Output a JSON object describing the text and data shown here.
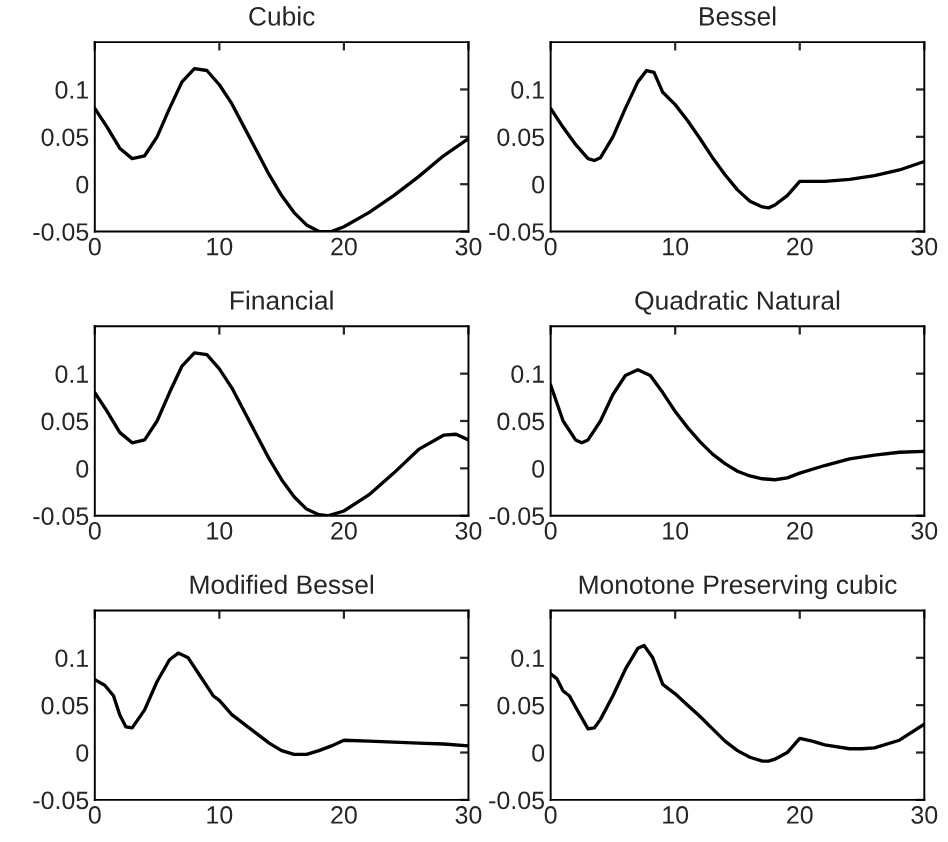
{
  "chart_data": [
    {
      "type": "line",
      "title": "Cubic",
      "xlim": [
        0,
        30
      ],
      "ylim": [
        -0.05,
        0.15
      ],
      "xticks": [
        0,
        10,
        20,
        30
      ],
      "yticks": [
        -0.05,
        0,
        0.05,
        0.1
      ],
      "grid": false,
      "legend": false,
      "series": [
        {
          "color": "#000000",
          "x": [
            0,
            1,
            2,
            3,
            4,
            5,
            6,
            7,
            8,
            9,
            10,
            11,
            12,
            13,
            14,
            15,
            16,
            17,
            18,
            19,
            20,
            22,
            24,
            26,
            28,
            30
          ],
          "values": [
            0.08,
            0.06,
            0.038,
            0.027,
            0.03,
            0.05,
            0.08,
            0.108,
            0.122,
            0.12,
            0.105,
            0.085,
            0.06,
            0.035,
            0.01,
            -0.012,
            -0.03,
            -0.043,
            -0.05,
            -0.05,
            -0.045,
            -0.03,
            -0.012,
            0.008,
            0.03,
            0.048
          ]
        }
      ]
    },
    {
      "type": "line",
      "title": "Bessel",
      "xlim": [
        0,
        30
      ],
      "ylim": [
        -0.05,
        0.15
      ],
      "xticks": [
        0,
        10,
        20,
        30
      ],
      "yticks": [
        -0.05,
        0,
        0.05,
        0.1
      ],
      "grid": false,
      "legend": false,
      "series": [
        {
          "color": "#000000",
          "x": [
            0,
            1,
            2,
            3,
            3.5,
            4,
            5,
            6,
            7,
            7.7,
            8.3,
            9,
            10,
            11,
            12,
            13,
            14,
            15,
            16,
            17,
            17.5,
            18,
            19,
            20,
            22,
            24,
            26,
            28,
            30
          ],
          "values": [
            0.08,
            0.06,
            0.042,
            0.027,
            0.025,
            0.028,
            0.05,
            0.08,
            0.108,
            0.12,
            0.118,
            0.097,
            0.084,
            0.067,
            0.048,
            0.028,
            0.01,
            -0.006,
            -0.018,
            -0.024,
            -0.025,
            -0.022,
            -0.012,
            0.003,
            0.003,
            0.005,
            0.009,
            0.015,
            0.024
          ]
        }
      ]
    },
    {
      "type": "line",
      "title": "Financial",
      "xlim": [
        0,
        30
      ],
      "ylim": [
        -0.05,
        0.15
      ],
      "xticks": [
        0,
        10,
        20,
        30
      ],
      "yticks": [
        -0.05,
        0,
        0.05,
        0.1
      ],
      "grid": false,
      "legend": false,
      "series": [
        {
          "color": "#000000",
          "x": [
            0,
            1,
            2,
            3,
            4,
            5,
            6,
            7,
            8,
            9,
            10,
            11,
            12,
            13,
            14,
            15,
            16,
            17,
            18,
            18.7,
            20,
            22,
            24,
            26,
            28,
            29,
            30
          ],
          "values": [
            0.08,
            0.06,
            0.038,
            0.027,
            0.03,
            0.05,
            0.08,
            0.108,
            0.122,
            0.12,
            0.105,
            0.085,
            0.06,
            0.035,
            0.01,
            -0.012,
            -0.03,
            -0.043,
            -0.049,
            -0.05,
            -0.045,
            -0.028,
            -0.005,
            0.02,
            0.035,
            0.036,
            0.03
          ]
        }
      ]
    },
    {
      "type": "line",
      "title": "Quadratic Natural",
      "xlim": [
        0,
        30
      ],
      "ylim": [
        -0.05,
        0.15
      ],
      "xticks": [
        0,
        10,
        20,
        30
      ],
      "yticks": [
        -0.05,
        0,
        0.05,
        0.1
      ],
      "grid": false,
      "legend": false,
      "series": [
        {
          "color": "#000000",
          "x": [
            0,
            1,
            2,
            2.5,
            3,
            4,
            5,
            6,
            7,
            8,
            9,
            10,
            11,
            12,
            13,
            14,
            15,
            16,
            17,
            18,
            19,
            20,
            22,
            24,
            26,
            28,
            30
          ],
          "values": [
            0.088,
            0.05,
            0.03,
            0.027,
            0.03,
            0.05,
            0.078,
            0.098,
            0.104,
            0.098,
            0.08,
            0.06,
            0.043,
            0.028,
            0.015,
            0.005,
            -0.003,
            -0.008,
            -0.011,
            -0.012,
            -0.01,
            -0.005,
            0.003,
            0.01,
            0.014,
            0.017,
            0.018
          ]
        }
      ]
    },
    {
      "type": "line",
      "title": "Modified Bessel",
      "xlim": [
        0,
        30
      ],
      "ylim": [
        -0.05,
        0.15
      ],
      "xticks": [
        0,
        10,
        20,
        30
      ],
      "yticks": [
        -0.05,
        0,
        0.05,
        0.1
      ],
      "grid": false,
      "legend": false,
      "series": [
        {
          "color": "#000000",
          "x": [
            0,
            0.8,
            1.5,
            2,
            2.5,
            3,
            4,
            5,
            6,
            6.7,
            7.5,
            8.5,
            9.5,
            10,
            11,
            12,
            13,
            14,
            15,
            16,
            17,
            18,
            19,
            20,
            22,
            24,
            26,
            28,
            30
          ],
          "values": [
            0.077,
            0.071,
            0.06,
            0.04,
            0.027,
            0.026,
            0.045,
            0.075,
            0.098,
            0.105,
            0.1,
            0.08,
            0.06,
            0.055,
            0.04,
            0.03,
            0.02,
            0.01,
            0.002,
            -0.002,
            -0.002,
            0.002,
            0.007,
            0.013,
            0.012,
            0.011,
            0.01,
            0.009,
            0.007
          ]
        }
      ]
    },
    {
      "type": "line",
      "title": "Monotone Preserving cubic",
      "xlim": [
        0,
        30
      ],
      "ylim": [
        -0.05,
        0.15
      ],
      "xticks": [
        0,
        10,
        20,
        30
      ],
      "yticks": [
        -0.05,
        0,
        0.05,
        0.1
      ],
      "grid": false,
      "legend": false,
      "series": [
        {
          "color": "#000000",
          "x": [
            0,
            0.5,
            1,
            1.5,
            2,
            3,
            3.5,
            4,
            5,
            6,
            7,
            7.5,
            8.2,
            9,
            10,
            11,
            12,
            13,
            14,
            15,
            16,
            17,
            17.5,
            18,
            19,
            20,
            21,
            22,
            24,
            25,
            26,
            28,
            30
          ],
          "values": [
            0.083,
            0.078,
            0.065,
            0.06,
            0.048,
            0.025,
            0.026,
            0.035,
            0.06,
            0.088,
            0.11,
            0.113,
            0.1,
            0.072,
            0.062,
            0.05,
            0.038,
            0.025,
            0.012,
            0.002,
            -0.005,
            -0.009,
            -0.009,
            -0.007,
            0.0,
            0.015,
            0.012,
            0.008,
            0.004,
            0.004,
            0.005,
            0.013,
            0.03
          ]
        }
      ]
    }
  ]
}
